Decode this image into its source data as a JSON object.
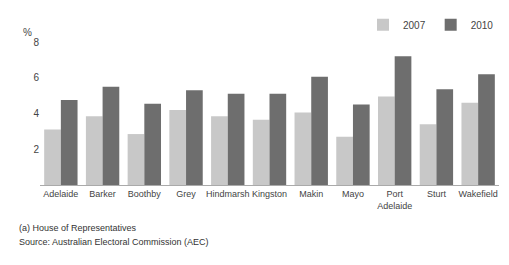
{
  "chart_data": {
    "type": "bar",
    "categories": [
      "Adelaide",
      "Barker",
      "Boothby",
      "Grey",
      "Hindmarsh",
      "Kingston",
      "Makin",
      "Mayo",
      "Port\nAdelaide",
      "Sturt",
      "Wakefield"
    ],
    "series": [
      {
        "name": "2007",
        "color": "#c8c8c8",
        "values": [
          3.1,
          3.85,
          2.85,
          4.2,
          3.85,
          3.65,
          4.05,
          2.7,
          4.95,
          3.4,
          4.6
        ]
      },
      {
        "name": "2010",
        "color": "#6e6e6e",
        "values": [
          4.75,
          5.5,
          4.55,
          5.3,
          5.1,
          5.1,
          6.05,
          4.5,
          7.2,
          5.35,
          6.2
        ]
      }
    ],
    "ylabel": "%",
    "ylim": [
      0,
      8
    ],
    "yticks": [
      2,
      4,
      6,
      8
    ],
    "grid": false,
    "legend": "upper right",
    "annotations": [
      "(a) House of Representatives",
      "Source: Australian Electoral Commission (AEC)"
    ]
  }
}
